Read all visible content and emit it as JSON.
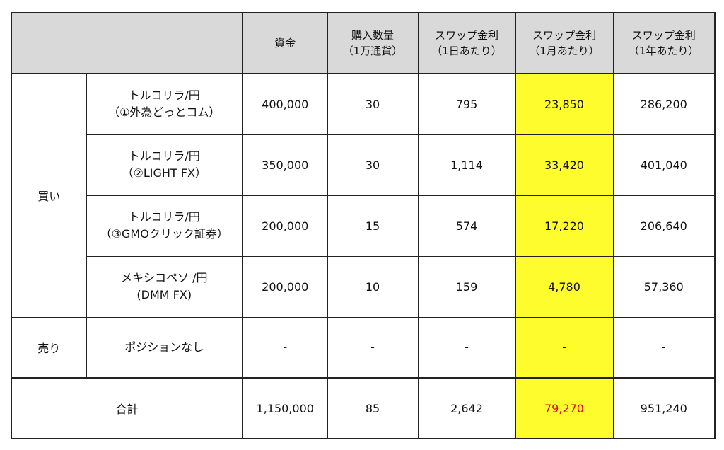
{
  "header": {
    "capital": "資金",
    "qty_line1": "購入数量",
    "qty_line2": "（1万通貨）",
    "swap_day_line1": "スワップ金利",
    "swap_day_line2": "（1日あたり）",
    "swap_month_line1": "スワップ金利",
    "swap_month_line2": "（1月あたり）",
    "swap_year_line1": "スワップ金利",
    "swap_year_line2": "（1年あたり）"
  },
  "buy": {
    "label": "買い",
    "rows": [
      {
        "pair_line1": "トルコリラ/円",
        "pair_line2": "（①外為どっとコム）",
        "capital": "400,000",
        "qty": "30",
        "swap_day": "795",
        "swap_month": "23,850",
        "swap_year": "286,200"
      },
      {
        "pair_line1": "トルコリラ/円",
        "pair_line2": "（②LIGHT FX）",
        "capital": "350,000",
        "qty": "30",
        "swap_day": "1,114",
        "swap_month": "33,420",
        "swap_year": "401,040"
      },
      {
        "pair_line1": "トルコリラ/円",
        "pair_line2": "（③GMOクリック証券）",
        "capital": "200,000",
        "qty": "15",
        "swap_day": "574",
        "swap_month": "17,220",
        "swap_year": "206,640"
      },
      {
        "pair_line1": "メキシコペソ /円",
        "pair_line2": "(DMM FX)",
        "capital": "200,000",
        "qty": "10",
        "swap_day": "159",
        "swap_month": "4,780",
        "swap_year": "57,360"
      }
    ]
  },
  "sell": {
    "label": "売り",
    "pair": "ポジションなし",
    "capital": "-",
    "qty": "-",
    "swap_day": "-",
    "swap_month": "-",
    "swap_year": "-"
  },
  "total": {
    "label": "合計",
    "capital": "1,150,000",
    "qty": "85",
    "swap_day": "2,642",
    "swap_month": "79,270",
    "swap_year": "951,240"
  },
  "colors": {
    "header_bg": "#d9d9d9",
    "highlight": "#fefc2d",
    "total_highlight_text": "#e30000"
  }
}
